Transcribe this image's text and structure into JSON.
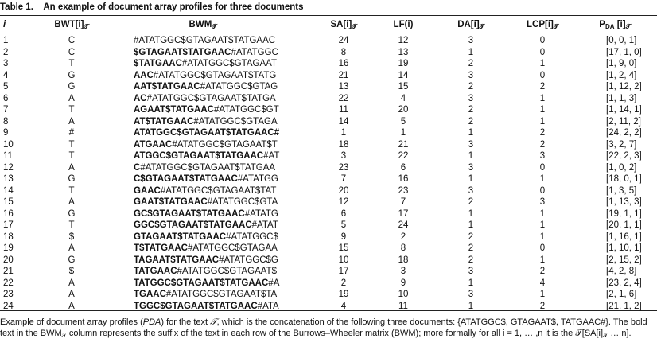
{
  "caption": {
    "label": "Table 1.",
    "title": "An example of document array profiles for three documents"
  },
  "table": {
    "header": [
      [
        {
          "t": "i",
          "italic": true
        }
      ],
      [
        {
          "t": "BWT[i]"
        },
        {
          "t": "𝒯",
          "sub": true
        }
      ],
      [
        {
          "t": "BWM"
        },
        {
          "t": "𝒯",
          "sub": true
        }
      ],
      [
        {
          "t": "SA[i]"
        },
        {
          "t": "𝒯",
          "sub": true
        }
      ],
      [
        {
          "t": "LF(i)"
        }
      ],
      [
        {
          "t": "DA[i]"
        },
        {
          "t": "𝒯",
          "sub": true
        }
      ],
      [
        {
          "t": "LCP[i]"
        },
        {
          "t": "𝒯",
          "sub": true
        }
      ],
      [
        {
          "t": "P"
        },
        {
          "t": "DA",
          "sub": true
        },
        {
          "t": " [i]"
        },
        {
          "t": "𝒯",
          "sub": true
        }
      ]
    ],
    "rows": [
      {
        "i": "1",
        "bwt": "C",
        "bwm_rest": "#ATATGGC$GTAGAAT$TATGAAC",
        "sa": "24",
        "lf": "12",
        "da": "3",
        "lcp": "0",
        "pda": "[0, 0, 1]"
      },
      {
        "i": "2",
        "bwt": "C",
        "bwm_bold": "$GTAGAAT$TATGAAC",
        "bwm_rest": "#ATATGGC",
        "sa": "8",
        "lf": "13",
        "da": "1",
        "lcp": "0",
        "pda": "[17, 1, 0]"
      },
      {
        "i": "3",
        "bwt": "T",
        "bwm_bold": "$TATGAAC",
        "bwm_rest": "#ATATGGC$GTAGAAT",
        "sa": "16",
        "lf": "19",
        "da": "2",
        "lcp": "1",
        "pda": "[1, 9, 0]"
      },
      {
        "i": "4",
        "bwt": "G",
        "bwm_bold": "AAC",
        "bwm_rest": "#ATATGGC$GTAGAAT$TATG",
        "sa": "21",
        "lf": "14",
        "da": "3",
        "lcp": "0",
        "pda": "[1, 2, 4]"
      },
      {
        "i": "5",
        "bwt": "G",
        "bwm_bold": "AAT$TATGAAC",
        "bwm_rest": "#ATATGGC$GTAG",
        "sa": "13",
        "lf": "15",
        "da": "2",
        "lcp": "2",
        "pda": "[1, 12, 2]"
      },
      {
        "i": "6",
        "bwt": "A",
        "bwm_bold": "AC",
        "bwm_rest": "#ATATGGC$GTAGAAT$TATGA",
        "sa": "22",
        "lf": "4",
        "da": "3",
        "lcp": "1",
        "pda": "[1, 1, 3]"
      },
      {
        "i": "7",
        "bwt": "T",
        "bwm_bold": "AGAAT$TATGAAC",
        "bwm_rest": "#ATATGGC$GT",
        "sa": "11",
        "lf": "20",
        "da": "2",
        "lcp": "1",
        "pda": "[1, 14, 1]"
      },
      {
        "i": "8",
        "bwt": "A",
        "bwm_bold": "AT$TATGAAC",
        "bwm_rest": "#ATATGGC$GTAGA",
        "sa": "14",
        "lf": "5",
        "da": "2",
        "lcp": "1",
        "pda": "[2, 11, 2]"
      },
      {
        "i": "9",
        "bwt": "#",
        "bwm_bold": "ATATGGC$GTAGAAT$TATGAAC#",
        "sa": "1",
        "lf": "1",
        "da": "1",
        "lcp": "2",
        "pda": "[24, 2, 2]"
      },
      {
        "i": "10",
        "bwt": "T",
        "bwm_bold": "ATGAAC",
        "bwm_rest": "#ATATGGC$GTAGAAT$T",
        "sa": "18",
        "lf": "21",
        "da": "3",
        "lcp": "2",
        "pda": "[3, 2, 7]"
      },
      {
        "i": "11",
        "bwt": "T",
        "bwm_bold": "ATGGC$GTAGAAT$TATGAAC",
        "bwm_rest": "#AT",
        "sa": "3",
        "lf": "22",
        "da": "1",
        "lcp": "3",
        "pda": "[22, 2, 3]"
      },
      {
        "i": "12",
        "bwt": "A",
        "bwm_bold": "C",
        "bwm_rest": "#ATATGGC$GTAGAAT$TATGAA",
        "sa": "23",
        "lf": "6",
        "da": "3",
        "lcp": "0",
        "pda": "[1, 0, 2]"
      },
      {
        "i": "13",
        "bwt": "G",
        "bwm_bold": "C$GTAGAAT$TATGAAC",
        "bwm_rest": "#ATATGG",
        "sa": "7",
        "lf": "16",
        "da": "1",
        "lcp": "1",
        "pda": "[18, 0, 1]"
      },
      {
        "i": "14",
        "bwt": "T",
        "bwm_bold": "GAAC",
        "bwm_rest": "#ATATGGC$GTAGAAT$TAT",
        "sa": "20",
        "lf": "23",
        "da": "3",
        "lcp": "0",
        "pda": "[1, 3, 5]"
      },
      {
        "i": "15",
        "bwt": "A",
        "bwm_bold": "GAAT$TATGAAC",
        "bwm_rest": "#ATATGGC$GTA",
        "sa": "12",
        "lf": "7",
        "da": "2",
        "lcp": "3",
        "pda": "[1, 13, 3]"
      },
      {
        "i": "16",
        "bwt": "G",
        "bwm_bold": "GC$GTAGAAT$TATGAAC",
        "bwm_rest": "#ATATG",
        "sa": "6",
        "lf": "17",
        "da": "1",
        "lcp": "1",
        "pda": "[19, 1, 1]"
      },
      {
        "i": "17",
        "bwt": "T",
        "bwm_bold": "GGC$GTAGAAT$TATGAAC",
        "bwm_rest": "#ATAT",
        "sa": "5",
        "lf": "24",
        "da": "1",
        "lcp": "1",
        "pda": "[20, 1, 1]"
      },
      {
        "i": "18",
        "bwt": "$",
        "bwm_bold": "GTAGAAT$TATGAAC",
        "bwm_rest": "#ATATGGC$",
        "sa": "9",
        "lf": "2",
        "da": "2",
        "lcp": "1",
        "pda": "[1, 16, 1]"
      },
      {
        "i": "19",
        "bwt": "A",
        "bwm_bold": "T$TATGAAC",
        "bwm_rest": "#ATATGGC$GTAGAA",
        "sa": "15",
        "lf": "8",
        "da": "2",
        "lcp": "0",
        "pda": "[1, 10, 1]"
      },
      {
        "i": "20",
        "bwt": "G",
        "bwm_bold": "TAGAAT$TATGAAC",
        "bwm_rest": "#ATATGGC$G",
        "sa": "10",
        "lf": "18",
        "da": "2",
        "lcp": "1",
        "pda": "[2, 15, 2]"
      },
      {
        "i": "21",
        "bwt": "$",
        "bwm_bold": "TATGAAC",
        "bwm_rest": "#ATATGGC$GTAGAAT$",
        "sa": "17",
        "lf": "3",
        "da": "3",
        "lcp": "2",
        "pda": "[4, 2, 8]"
      },
      {
        "i": "22",
        "bwt": "A",
        "bwm_bold": "TATGGC$GTAGAAT$TATGAAC",
        "bwm_rest": "#A",
        "sa": "2",
        "lf": "9",
        "da": "1",
        "lcp": "4",
        "pda": "[23, 2, 4]"
      },
      {
        "i": "23",
        "bwt": "A",
        "bwm_bold": "TGAAC",
        "bwm_rest": "#ATATGGC$GTAGAAT$TA",
        "sa": "19",
        "lf": "10",
        "da": "3",
        "lcp": "1",
        "pda": "[2, 1, 6]"
      },
      {
        "i": "24",
        "bwt": "A",
        "bwm_bold": "TGGC$GTAGAAT$TATGAAC",
        "bwm_rest": "#ATA",
        "sa": "4",
        "lf": "11",
        "da": "1",
        "lcp": "2",
        "pda": "[21, 1, 2]"
      }
    ]
  },
  "footnote": [
    {
      "t": "Example of document array profiles ("
    },
    {
      "t": "PDA",
      "italic": true
    },
    {
      "t": ") for the text "
    },
    {
      "t": "𝒯",
      "italic": true
    },
    {
      "t": ", which is the concatenation of the following three documents: {ATATGGC$, GTAGAAT$, TATGAAC#}. The bold text in the BWM"
    },
    {
      "t": "𝒯",
      "sub": true
    },
    {
      "t": " column represents the suffix of the text in each row of the Burrows–Wheeler matrix (BWM); more formally for all i = 1, … ,n it is the 𝒯[SA[i]"
    },
    {
      "t": "𝒯",
      "sub": true
    },
    {
      "t": " … n]."
    }
  ]
}
